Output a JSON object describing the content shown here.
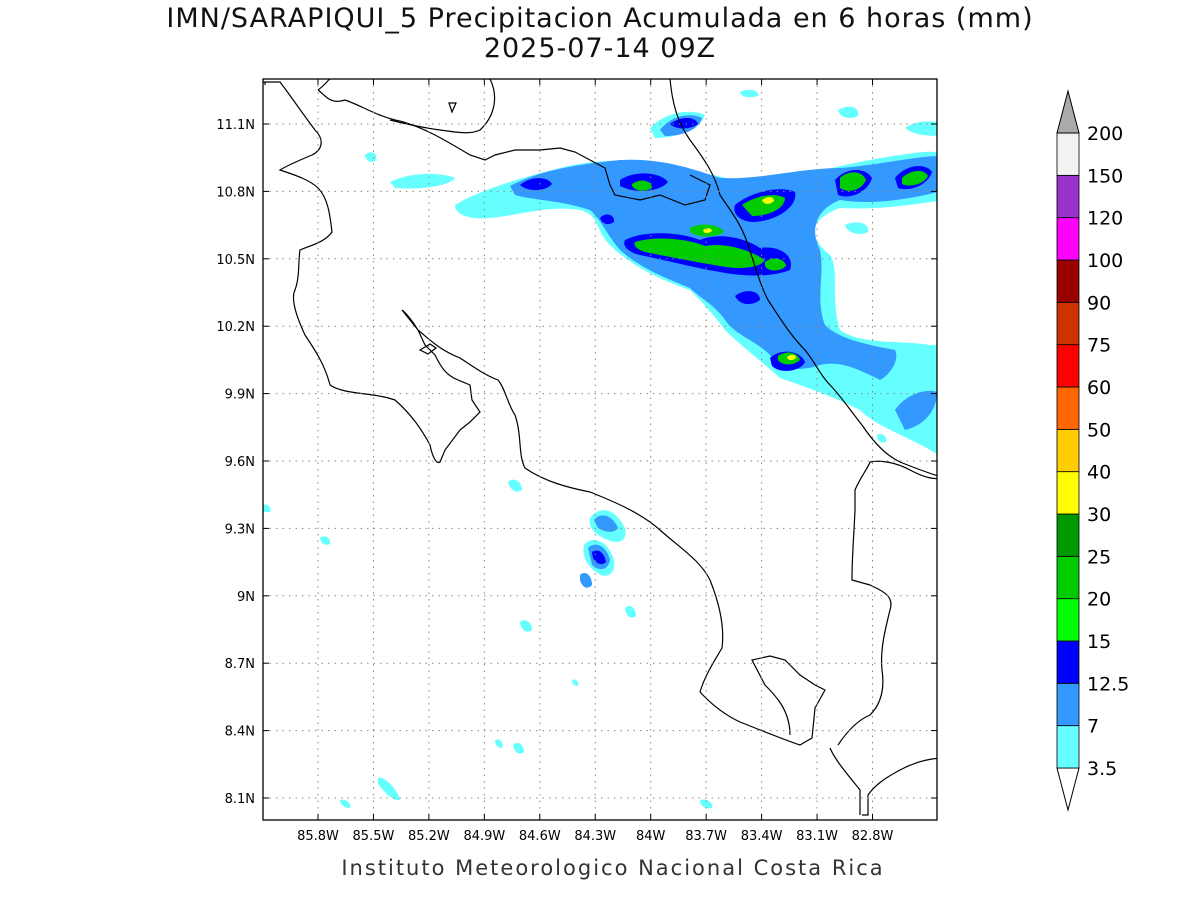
{
  "title_line1": "IMN/SARAPIQUI_5 Precipitacion Acumulada en 6 horas (mm)",
  "title_line2": "2025-07-14 09Z",
  "credit": "Instituto Meteorologico Nacional Costa Rica",
  "map": {
    "lon_range": [
      -86.05,
      -83.05
    ],
    "lat_range": [
      8.0,
      11.3
    ],
    "lon_ticks": [
      {
        "value": -85.8,
        "label": "85.8W"
      },
      {
        "value": -85.5,
        "label": "85.5W"
      },
      {
        "value": -85.2,
        "label": "85.2W"
      },
      {
        "value": -84.9,
        "label": "84.9W"
      },
      {
        "value": -84.6,
        "label": "84.6W"
      },
      {
        "value": -84.3,
        "label": "84.3W"
      },
      {
        "value": -84.0,
        "label": "84W"
      },
      {
        "value": -83.7,
        "label": "83.7W"
      },
      {
        "value": -83.4,
        "label": "83.4W"
      },
      {
        "value": -83.1,
        "label": "83.1W"
      },
      {
        "value": -82.8,
        "label": "82.8W"
      }
    ],
    "lat_ticks": [
      {
        "value": 11.1,
        "label": "11.1N"
      },
      {
        "value": 10.8,
        "label": "10.8N"
      },
      {
        "value": 10.5,
        "label": "10.5N"
      },
      {
        "value": 10.2,
        "label": "10.2N"
      },
      {
        "value": 9.9,
        "label": "9.9N"
      },
      {
        "value": 9.6,
        "label": "9.6N"
      },
      {
        "value": 9.3,
        "label": "9.3N"
      },
      {
        "value": 9.0,
        "label": "9N"
      },
      {
        "value": 8.7,
        "label": "8.7N"
      },
      {
        "value": 8.4,
        "label": "8.4N"
      },
      {
        "value": 8.1,
        "label": "8.1N"
      }
    ],
    "grid": "dotted"
  },
  "colorbar": {
    "colors": [
      "#66ffff",
      "#3399ff",
      "#0000ff",
      "#00ff00",
      "#00cc00",
      "#009900",
      "#ffff00",
      "#ffcc00",
      "#ff6600",
      "#ff0000",
      "#cc3300",
      "#990000",
      "#ff00ff",
      "#9933cc",
      "#f2f2f2",
      "#aaaaaa"
    ],
    "labels": [
      "3.5",
      "7",
      "12.5",
      "15",
      "20",
      "25",
      "30",
      "40",
      "50",
      "60",
      "75",
      "90",
      "100",
      "120",
      "150",
      "200"
    ]
  }
}
